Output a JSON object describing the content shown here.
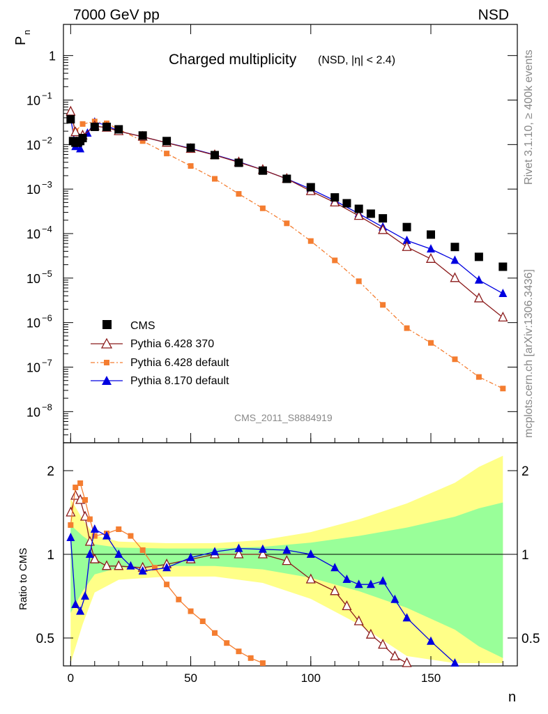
{
  "header": {
    "left": "7000 GeV pp",
    "right": "NSD"
  },
  "chart_data": {
    "type": "scatter",
    "title": "Charged multiplicity",
    "title_suffix": "(NSD, |η| < 2.4)",
    "xlabel": "n",
    "ylabel_main": "P",
    "ylabel_main_sub": "n",
    "ylabel_ratio": "Ratio to CMS",
    "analysis_label": "CMS_2011_S8884919",
    "side_text_top": "Rivet 3.1.10, ≥ 400k events",
    "side_text_bottom": "mcplots.cern.ch [arXiv:1306.3436]",
    "xlim": [
      -3,
      186
    ],
    "ylim_log10": [
      -8.7,
      0.7
    ],
    "ylim_ratio": [
      0.35,
      2.3
    ],
    "x_ticks": [
      "0",
      "50",
      "100",
      "150"
    ],
    "y_ticks_main": [
      "1",
      "10−1",
      "10−2",
      "10−3",
      "10−4",
      "10−5",
      "10−6",
      "10−7",
      "10−8"
    ],
    "y_ticks_ratio": [
      "0.5",
      "1",
      "2"
    ],
    "legend": [
      {
        "label": "CMS",
        "color": "#000000",
        "marker": "square"
      },
      {
        "label": "Pythia 6.428 370",
        "color": "#8b1a1a",
        "marker": "open-triangle"
      },
      {
        "label": "Pythia 6.428 default",
        "color": "#f47d30",
        "marker": "small-square"
      },
      {
        "label": "Pythia 8.170 default",
        "color": "#0000e0",
        "marker": "triangle"
      }
    ],
    "series": [
      {
        "name": "CMS",
        "color": "#000000",
        "x": [
          0,
          1,
          2,
          3,
          4,
          5,
          10,
          15,
          20,
          30,
          40,
          50,
          60,
          70,
          80,
          90,
          100,
          110,
          115,
          120,
          125,
          130,
          140,
          150,
          160,
          170,
          180
        ],
        "y": [
          0.037,
          0.012,
          0.011,
          0.011,
          0.012,
          0.014,
          0.025,
          0.025,
          0.022,
          0.016,
          0.012,
          0.0085,
          0.0058,
          0.0039,
          0.0026,
          0.0017,
          0.0011,
          0.00065,
          0.00048,
          0.00036,
          0.00028,
          0.00022,
          0.00014,
          9.5e-05,
          5e-05,
          3e-05,
          1.8e-05
        ]
      },
      {
        "name": "Pythia 6.428 370",
        "color": "#8b1a1a",
        "x": [
          0,
          2,
          5,
          10,
          15,
          20,
          30,
          40,
          50,
          60,
          70,
          80,
          90,
          100,
          110,
          120,
          130,
          140,
          150,
          160,
          170,
          180
        ],
        "y": [
          0.055,
          0.019,
          0.016,
          0.026,
          0.024,
          0.02,
          0.015,
          0.011,
          0.008,
          0.0058,
          0.004,
          0.0027,
          0.0017,
          0.0009,
          0.0005,
          0.00025,
          0.00012,
          5e-05,
          2.7e-05,
          1e-05,
          3.5e-06,
          1.3e-06
        ]
      },
      {
        "name": "Pythia 6.428 default",
        "color": "#f47d30",
        "x": [
          0,
          2,
          5,
          10,
          15,
          20,
          30,
          40,
          50,
          60,
          70,
          80,
          90,
          100,
          110,
          120,
          130,
          140,
          150,
          160,
          170,
          180
        ],
        "y": [
          0.05,
          0.02,
          0.029,
          0.033,
          0.03,
          0.022,
          0.012,
          0.0063,
          0.0033,
          0.0017,
          0.00078,
          0.00037,
          0.00017,
          6.8e-05,
          2.5e-05,
          8.5e-06,
          2.5e-06,
          7.5e-07,
          3.5e-07,
          1.5e-07,
          6e-08,
          3.3e-08
        ]
      },
      {
        "name": "Pythia 8.170 default",
        "color": "#0000e0",
        "x": [
          0,
          2,
          4,
          7,
          10,
          15,
          20,
          30,
          40,
          50,
          60,
          70,
          80,
          90,
          100,
          110,
          120,
          130,
          140,
          150,
          160,
          170,
          180
        ],
        "y": [
          0.04,
          0.009,
          0.008,
          0.018,
          0.032,
          0.027,
          0.02,
          0.015,
          0.011,
          0.0082,
          0.0059,
          0.0041,
          0.0027,
          0.0017,
          0.001,
          0.00055,
          0.00028,
          0.00014,
          7e-05,
          4.5e-05,
          2.5e-05,
          9e-06,
          4.5e-06
        ]
      }
    ],
    "ratio_series": [
      {
        "name": "Pythia 6.428 370",
        "x": [
          0,
          2,
          4,
          6,
          8,
          10,
          15,
          20,
          30,
          40,
          50,
          60,
          70,
          80,
          90,
          100,
          110,
          115,
          120,
          125,
          130,
          135,
          140
        ],
        "y": [
          1.5,
          1.7,
          1.65,
          1.45,
          1.15,
          0.97,
          0.93,
          0.93,
          0.92,
          0.94,
          0.97,
          1.0,
          1.0,
          1.0,
          0.96,
          0.85,
          0.78,
          0.69,
          0.6,
          0.52,
          0.46,
          0.39,
          0.35
        ]
      },
      {
        "name": "Pythia 6.428 default",
        "x": [
          0,
          2,
          4,
          6,
          8,
          10,
          15,
          20,
          25,
          30,
          35,
          40,
          45,
          50,
          55,
          60,
          65,
          70,
          75,
          80
        ],
        "y": [
          1.35,
          1.8,
          1.85,
          1.65,
          1.42,
          1.22,
          1.25,
          1.3,
          1.22,
          1.05,
          0.92,
          0.82,
          0.73,
          0.66,
          0.6,
          0.53,
          0.47,
          0.42,
          0.38,
          0.35
        ]
      },
      {
        "name": "Pythia 8.170 default",
        "x": [
          0,
          2,
          4,
          6,
          8,
          10,
          15,
          20,
          25,
          30,
          40,
          50,
          60,
          70,
          80,
          90,
          100,
          110,
          115,
          120,
          125,
          130,
          135,
          140,
          150,
          160
        ],
        "y": [
          1.2,
          0.7,
          0.66,
          0.75,
          1.0,
          1.3,
          1.22,
          1.0,
          0.93,
          0.9,
          0.92,
          0.98,
          1.03,
          1.07,
          1.06,
          1.05,
          1.0,
          0.92,
          0.85,
          0.82,
          0.82,
          0.84,
          0.73,
          0.62,
          0.48,
          0.35
        ]
      }
    ]
  }
}
